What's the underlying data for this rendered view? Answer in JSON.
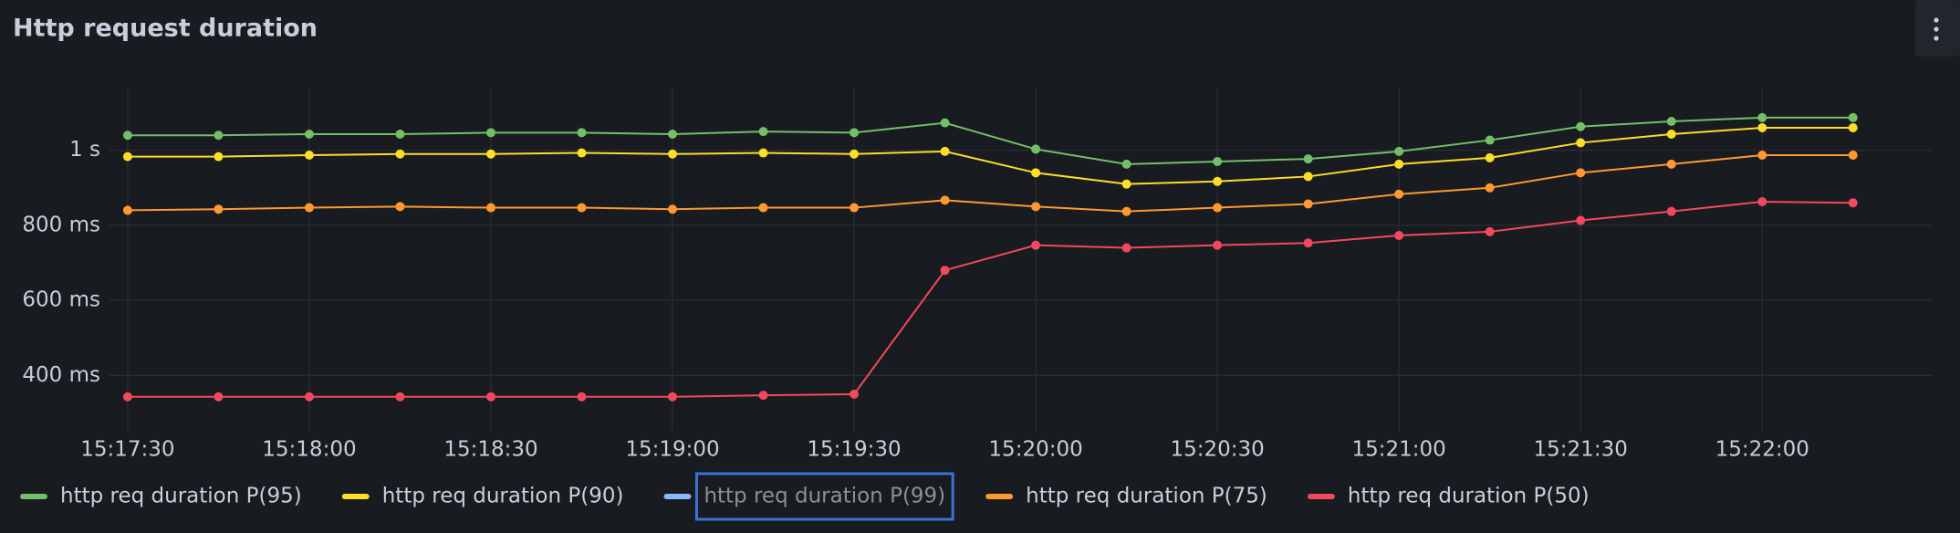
{
  "chart_data": {
    "type": "line",
    "title": "Http request duration",
    "x": [
      "15:17:30",
      "15:17:45",
      "15:18:00",
      "15:18:15",
      "15:18:30",
      "15:18:45",
      "15:19:00",
      "15:19:15",
      "15:19:30",
      "15:19:45",
      "15:20:00",
      "15:20:15",
      "15:20:30",
      "15:20:45",
      "15:21:00",
      "15:21:15",
      "15:21:30",
      "15:21:45",
      "15:22:00",
      "15:22:15"
    ],
    "xlim": [
      "15:17:27",
      "15:22:28"
    ],
    "xticks": [
      "15:17:30",
      "15:18:00",
      "15:18:30",
      "15:19:00",
      "15:19:30",
      "15:20:00",
      "15:20:30",
      "15:21:00",
      "15:21:30",
      "15:22:00"
    ],
    "ylim": [
      250,
      1167
    ],
    "yticks": [
      {
        "value": 400,
        "label": "400 ms"
      },
      {
        "value": 600,
        "label": "600 ms"
      },
      {
        "value": 800,
        "label": "800 ms"
      },
      {
        "value": 1000,
        "label": "1 s"
      }
    ],
    "grid": true,
    "legend": "bottom",
    "series": [
      {
        "name": "http req duration P(95)",
        "color": "#73bf69",
        "values": [
          1040,
          1040,
          1043,
          1043,
          1047,
          1047,
          1043,
          1050,
          1047,
          1073,
          1003,
          963,
          970,
          977,
          997,
          1027,
          1063,
          1077,
          1087,
          1087
        ]
      },
      {
        "name": "http req duration P(90)",
        "color": "#fade2a",
        "values": [
          983,
          983,
          987,
          990,
          990,
          993,
          990,
          993,
          990,
          997,
          940,
          910,
          917,
          930,
          963,
          980,
          1020,
          1043,
          1060,
          1060
        ]
      },
      {
        "name": "http req duration P(99)",
        "color": "#8ab8ff",
        "hidden": true,
        "values": [
          null,
          null,
          null,
          null,
          null,
          null,
          null,
          null,
          null,
          null,
          null,
          null,
          null,
          null,
          null,
          null,
          null,
          null,
          null,
          null
        ]
      },
      {
        "name": "http req duration P(75)",
        "color": "#ff9830",
        "values": [
          840,
          843,
          847,
          850,
          847,
          847,
          843,
          847,
          847,
          867,
          850,
          837,
          847,
          857,
          883,
          900,
          940,
          963,
          987,
          987
        ]
      },
      {
        "name": "http req duration P(50)",
        "color": "#f2495c",
        "values": [
          343,
          343,
          343,
          343,
          343,
          343,
          343,
          347,
          350,
          680,
          747,
          740,
          747,
          753,
          773,
          783,
          813,
          837,
          863,
          860
        ]
      }
    ]
  }
}
